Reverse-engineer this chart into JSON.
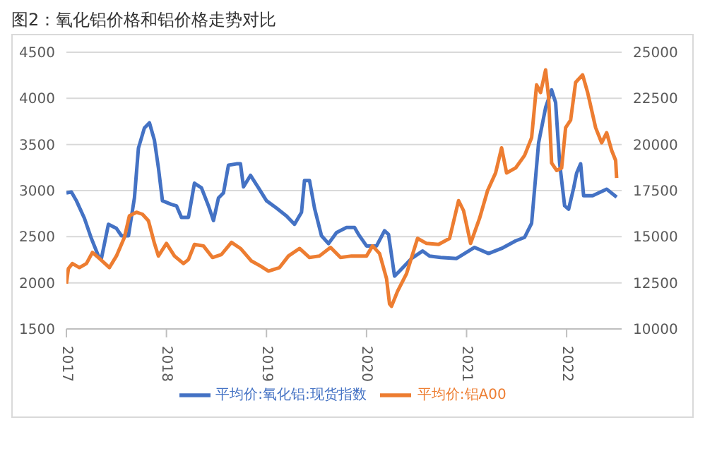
{
  "chart_data": {
    "type": "line",
    "title": "图2：氧化铝价格和铝价格走势对比",
    "xlim": [
      2017,
      2022.55
    ],
    "xticks": [
      2017,
      2018,
      2019,
      2020,
      2021,
      2022
    ],
    "ylim": [
      1500,
      4500
    ],
    "yticks": [
      1500,
      2000,
      2500,
      3000,
      3500,
      4000,
      4500
    ],
    "y2lim": [
      10000,
      25000
    ],
    "y2ticks": [
      10000,
      12500,
      15000,
      17500,
      20000,
      22500,
      25000
    ],
    "grid": "y",
    "legend": "bottom",
    "marker": "none",
    "line_style": "solid",
    "series": [
      {
        "name": "平均价:氧化铝:现货指数",
        "color": "#4472c4",
        "x": [
          2017.0,
          2017.05,
          2017.1,
          2017.18,
          2017.25,
          2017.32,
          2017.35,
          2017.42,
          2017.5,
          2017.55,
          2017.62,
          2017.68,
          2017.72,
          2017.78,
          2017.83,
          2017.88,
          2017.92,
          2017.96,
          2018.05,
          2018.1,
          2018.15,
          2018.22,
          2018.28,
          2018.35,
          2018.42,
          2018.47,
          2018.52,
          2018.57,
          2018.62,
          2018.7,
          2018.74,
          2018.77,
          2018.84,
          2018.92,
          2019.0,
          2019.1,
          2019.2,
          2019.28,
          2019.35,
          2019.38,
          2019.43,
          2019.48,
          2019.55,
          2019.62,
          2019.7,
          2019.8,
          2019.88,
          2019.92,
          2020.0,
          2020.1,
          2020.18,
          2020.22,
          2020.28,
          2020.33,
          2020.45,
          2020.56,
          2020.63,
          2020.74,
          2020.9,
          2021.08,
          2021.22,
          2021.35,
          2021.49,
          2021.58,
          2021.65,
          2021.72,
          2021.79,
          2021.85,
          2021.89,
          2021.93,
          2021.98,
          2022.02,
          2022.07,
          2022.1,
          2022.14,
          2022.17,
          2022.26,
          2022.4,
          2022.5
        ],
        "values": [
          2975,
          2985,
          2890,
          2700,
          2480,
          2290,
          2265,
          2635,
          2590,
          2510,
          2510,
          2920,
          3460,
          3680,
          3735,
          3545,
          3245,
          2890,
          2850,
          2835,
          2710,
          2710,
          3080,
          3030,
          2835,
          2675,
          2920,
          2975,
          3275,
          3290,
          3290,
          3040,
          3165,
          3030,
          2890,
          2810,
          2725,
          2635,
          2765,
          3110,
          3110,
          2810,
          2510,
          2425,
          2545,
          2600,
          2600,
          2525,
          2400,
          2400,
          2565,
          2525,
          2073,
          2127,
          2264,
          2345,
          2290,
          2275,
          2264,
          2384,
          2318,
          2373,
          2455,
          2493,
          2645,
          3518,
          3900,
          4091,
          3955,
          3300,
          2836,
          2798,
          3027,
          3190,
          3290,
          2945,
          2945,
          3016,
          2929
        ]
      },
      {
        "name": "平均价:铝A00",
        "color": "#ed7d31",
        "axis": "y2",
        "x": [
          2017.0,
          2017.02,
          2017.06,
          2017.13,
          2017.2,
          2017.26,
          2017.33,
          2017.43,
          2017.5,
          2017.58,
          2017.63,
          2017.7,
          2017.76,
          2017.82,
          2017.88,
          2017.92,
          2018.0,
          2018.08,
          2018.17,
          2018.22,
          2018.28,
          2018.37,
          2018.46,
          2018.55,
          2018.65,
          2018.74,
          2018.85,
          2018.94,
          2019.02,
          2019.13,
          2019.22,
          2019.33,
          2019.43,
          2019.53,
          2019.64,
          2019.74,
          2019.85,
          2020.0,
          2020.06,
          2020.13,
          2020.2,
          2020.23,
          2020.25,
          2020.31,
          2020.4,
          2020.51,
          2020.6,
          2020.72,
          2020.83,
          2020.92,
          2020.97,
          2021.04,
          2021.13,
          2021.21,
          2021.29,
          2021.35,
          2021.4,
          2021.49,
          2021.58,
          2021.65,
          2021.7,
          2021.74,
          2021.79,
          2021.82,
          2021.85,
          2021.9,
          2021.95,
          2021.99,
          2022.04,
          2022.09,
          2022.16,
          2022.21,
          2022.29,
          2022.35,
          2022.4,
          2022.45,
          2022.49,
          2022.5
        ],
        "values": [
          12455,
          13273,
          13545,
          13327,
          13545,
          14145,
          13818,
          13327,
          13955,
          14964,
          16136,
          16327,
          16218,
          15864,
          14636,
          13955,
          14636,
          13955,
          13545,
          13764,
          14582,
          14500,
          13873,
          14036,
          14691,
          14364,
          13682,
          13409,
          13136,
          13327,
          13955,
          14364,
          13873,
          13955,
          14418,
          13873,
          13955,
          13955,
          14500,
          14091,
          12727,
          11364,
          11227,
          12045,
          13000,
          14909,
          14636,
          14582,
          14909,
          16955,
          16409,
          14636,
          16000,
          17500,
          18455,
          19818,
          18455,
          18727,
          19409,
          20364,
          23227,
          22818,
          24045,
          22545,
          19000,
          18591,
          18727,
          20909,
          21318,
          23364,
          23773,
          22818,
          20909,
          20091,
          20636,
          19682,
          19136,
          18182
        ]
      }
    ]
  }
}
